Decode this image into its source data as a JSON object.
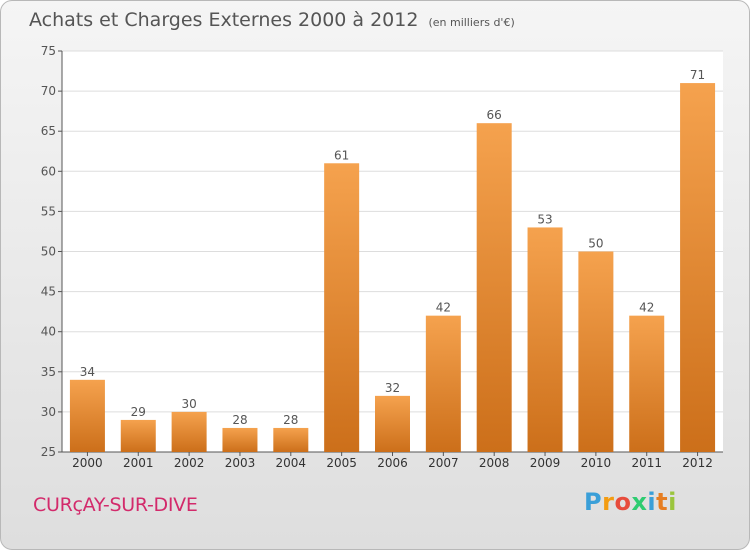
{
  "header": {
    "title": "Achats et Charges Externes 2000 à 2012",
    "unit": "(en milliers d'€)"
  },
  "footer": {
    "commune": "CURçAY-SUR-DIVE",
    "brand": "Proxiti"
  },
  "colors": {
    "bar_light": "#f5a24e",
    "bar_dark": "#cc6f1a",
    "axis": "#555555",
    "grid": "#dddddd",
    "plot_bg": "#ffffff",
    "commune_text": "#d32a6b",
    "brand_letters": [
      "#3a9fd8",
      "#f39c12",
      "#e74c3c",
      "#2ecc71",
      "#3a9fd8",
      "#e67e22",
      "#9bc53d"
    ]
  },
  "chart_data": {
    "type": "bar",
    "title": "Achats et Charges Externes 2000 à 2012",
    "subtitle": "(en milliers d'€)",
    "xlabel": "",
    "ylabel": "",
    "categories": [
      "2000",
      "2001",
      "2002",
      "2003",
      "2004",
      "2005",
      "2006",
      "2007",
      "2008",
      "2009",
      "2010",
      "2011",
      "2012"
    ],
    "values": [
      34,
      29,
      30,
      28,
      28,
      61,
      32,
      42,
      66,
      53,
      50,
      42,
      71
    ],
    "ylim": [
      25,
      75
    ],
    "yticks": [
      25,
      30,
      35,
      40,
      45,
      50,
      55,
      60,
      65,
      70,
      75
    ],
    "grid": true,
    "legend": "none"
  }
}
